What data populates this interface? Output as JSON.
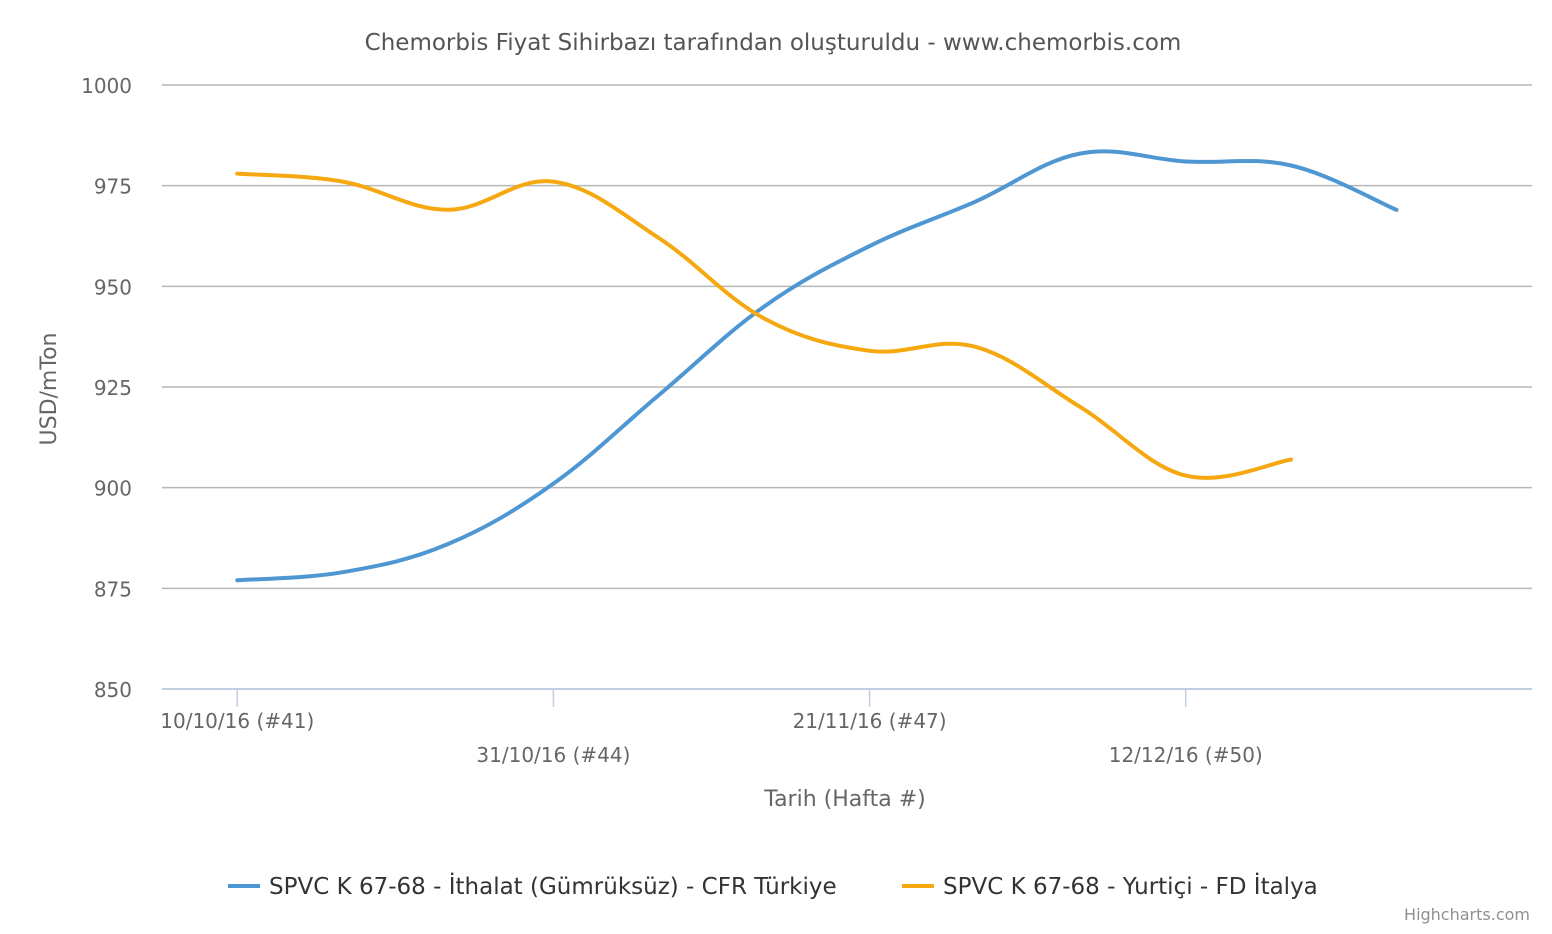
{
  "chart_data": {
    "type": "line",
    "title": "Chemorbis Fiyat Sihirbazı tarafından oluşturuldu - www.chemorbis.com",
    "xlabel": "Tarih (Hafta #)",
    "ylabel": "USD/mTon",
    "ylim": [
      850,
      1000
    ],
    "yticks": [
      850,
      875,
      900,
      925,
      950,
      975,
      1000
    ],
    "x": [
      "2016-10-10",
      "2016-10-17",
      "2016-10-24",
      "2016-10-31",
      "2016-11-07",
      "2016-11-14",
      "2016-11-21",
      "2016-11-28",
      "2016-12-05",
      "2016-12-12",
      "2016-12-19",
      "2016-12-26"
    ],
    "xlim": [
      "2016-10-05",
      "2017-01-04"
    ],
    "xticks": [
      {
        "x": "2016-10-10",
        "label": "10/10/16 (#41)",
        "row": 0
      },
      {
        "x": "2016-10-31",
        "label": "31/10/16 (#44)",
        "row": 1
      },
      {
        "x": "2016-11-21",
        "label": "21/11/16 (#47)",
        "row": 0
      },
      {
        "x": "2016-12-12",
        "label": "12/12/16 (#50)",
        "row": 1
      }
    ],
    "grid": true,
    "legend_position": "bottom",
    "series": [
      {
        "name": "SPVC K 67-68 - İthalat (Gümrüksüz) - CFR Türkiye",
        "color": "#4f97d2",
        "values": [
          877,
          879,
          886,
          901,
          923,
          945,
          960,
          971,
          983,
          981,
          980,
          969
        ]
      },
      {
        "name": "SPVC K 67-68 - Yurtiçi - FD İtalya",
        "color": "#f5a80f",
        "values": [
          978,
          976,
          969,
          976,
          962,
          942,
          934,
          935,
          920,
          903,
          907,
          null
        ]
      }
    ]
  },
  "credits": "Highcharts.com"
}
